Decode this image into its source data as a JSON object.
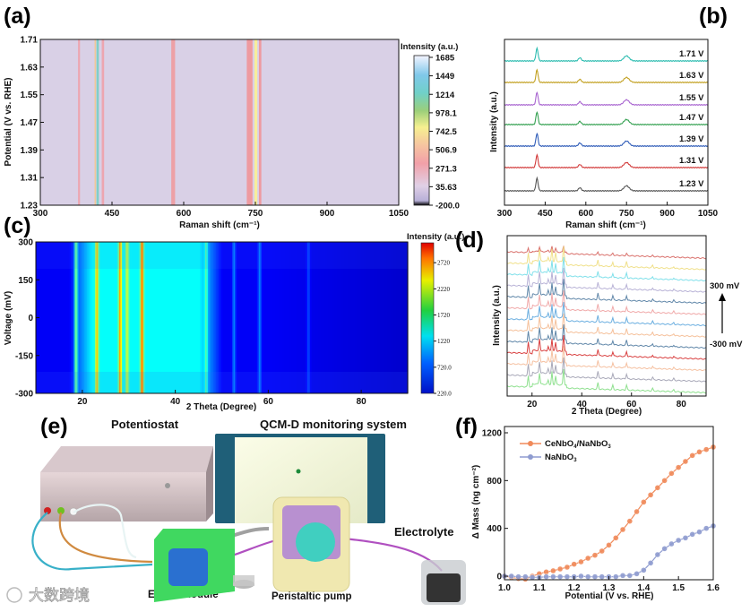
{
  "panel_labels": {
    "a": "(a)",
    "b": "(b)",
    "c": "(c)",
    "d": "(d)",
    "e": "(e)",
    "f": "(f)"
  },
  "chart_data": [
    {
      "id": "a",
      "type": "heatmap",
      "xlabel": "Raman shift (cm⁻¹)",
      "ylabel": "Potential (V vs. RHE)",
      "xlim": [
        300,
        1050
      ],
      "ylim": [
        1.23,
        1.71
      ],
      "xticks": [
        "300",
        "450",
        "600",
        "750",
        "900",
        "1050"
      ],
      "yticks": [
        "1.71",
        "1.63",
        "1.55",
        "1.47",
        "1.39",
        "1.31",
        "1.23"
      ],
      "colorbar_title": "Intensity (a.u.)",
      "colorbar_ticks": [
        "1685",
        "1449",
        "1214",
        "978.1",
        "742.5",
        "506.9",
        "271.3",
        "35.63",
        "-200.0"
      ],
      "background_color": "#d9d0e6",
      "bands": [
        {
          "center": 381,
          "width": 4,
          "color": "#eda5b0"
        },
        {
          "center": 415,
          "width": 3,
          "color": "#f0c89a"
        },
        {
          "center": 420,
          "width": 5,
          "color": "#7fcfc9"
        },
        {
          "center": 431,
          "width": 5,
          "color": "#eda5b0"
        },
        {
          "center": 578,
          "width": 8,
          "color": "#eda0a6"
        },
        {
          "center": 738,
          "width": 12,
          "color": "#ee9aa0"
        },
        {
          "center": 751,
          "width": 6,
          "color": "#f8ee9c"
        },
        {
          "center": 760,
          "width": 5,
          "color": "#ee9aa0"
        }
      ]
    },
    {
      "id": "b",
      "type": "line",
      "xlabel": "Raman shift (cm⁻¹)",
      "ylabel": "Intensity (a.u.)",
      "xlim": [
        300,
        1050
      ],
      "xticks": [
        "300",
        "450",
        "600",
        "750",
        "900",
        "1050"
      ],
      "peaks": [
        {
          "x": 420,
          "h": 1.0,
          "w": 4
        },
        {
          "x": 578,
          "h": 0.25,
          "w": 5
        },
        {
          "x": 750,
          "h": 0.4,
          "w": 10
        }
      ],
      "series": [
        {
          "name": "1.71 V",
          "color": "#2cbcb0"
        },
        {
          "name": "1.63 V",
          "color": "#c2a020"
        },
        {
          "name": "1.55 V",
          "color": "#a864d0"
        },
        {
          "name": "1.47 V",
          "color": "#33a050"
        },
        {
          "name": "1.39 V",
          "color": "#2f5cb8"
        },
        {
          "name": "1.31 V",
          "color": "#d23a3a"
        },
        {
          "name": "1.23 V",
          "color": "#555555"
        }
      ]
    },
    {
      "id": "c",
      "type": "heatmap",
      "xlabel": "2 Theta (Degree)",
      "ylabel": "Voltage (mV)",
      "xlim": [
        10,
        90
      ],
      "ylim": [
        -300,
        300
      ],
      "xticks": [
        "20",
        "40",
        "60",
        "80"
      ],
      "yticks": [
        "300",
        "150",
        "0",
        "-150",
        "-300"
      ],
      "colorbar_title": "Intensity (a.u.)",
      "colorbar_ticks": [
        "2720",
        "2220",
        "1720",
        "1220",
        "720.0",
        "220.0"
      ],
      "zlim": [
        220,
        3100
      ],
      "baseline": 560,
      "hump": {
        "from": 20,
        "to": 47,
        "height": 750
      },
      "peaks": [
        {
          "x": 18.5,
          "h": 900
        },
        {
          "x": 23,
          "h": 850
        },
        {
          "x": 28,
          "h": 1000
        },
        {
          "x": 29.5,
          "h": 600
        },
        {
          "x": 32.7,
          "h": 1150
        },
        {
          "x": 46.5,
          "h": 450
        },
        {
          "x": 52.5,
          "h": 380
        },
        {
          "x": 58,
          "h": 380
        },
        {
          "x": 68.5,
          "h": 250
        }
      ]
    },
    {
      "id": "d",
      "type": "line",
      "xlabel": "2 Theta (Degree)",
      "ylabel": "Intensity (a.u.)",
      "xlim": [
        10,
        90
      ],
      "xticks": [
        "20",
        "40",
        "60",
        "80"
      ],
      "annotation_top": "300 mV",
      "annotation_bottom": "-300 mV",
      "peaks": [
        {
          "x": 18.5,
          "h": 0.9
        },
        {
          "x": 23,
          "h": 0.9
        },
        {
          "x": 26.5,
          "h": 0.35
        },
        {
          "x": 28,
          "h": 1.0
        },
        {
          "x": 29.5,
          "h": 0.7
        },
        {
          "x": 32.7,
          "h": 1.3
        },
        {
          "x": 46.5,
          "h": 0.5
        },
        {
          "x": 52.5,
          "h": 0.35
        },
        {
          "x": 58,
          "h": 0.4
        },
        {
          "x": 68.5,
          "h": 0.2
        },
        {
          "x": 77,
          "h": 0.15
        }
      ],
      "series_colors": [
        "#d9706b",
        "#f0e08a",
        "#80e0ea",
        "#b8b2d6",
        "#5f86a8",
        "#f0a8a8",
        "#6aaee0",
        "#f5c09a",
        "#5f86a8",
        "#d94040",
        "#f5c0a0",
        "#a8a8b8",
        "#8ee08e"
      ]
    },
    {
      "id": "f",
      "type": "scatter-line",
      "xlabel": "Potential (V vs. RHE)",
      "ylabel": "Δ Mass (ng cm⁻²)",
      "xlim": [
        1.0,
        1.6
      ],
      "ylim": [
        -60,
        1230
      ],
      "xticks": [
        "1.0",
        "1.1",
        "1.2",
        "1.3",
        "1.4",
        "1.5",
        "1.6"
      ],
      "yticks": [
        "1200",
        "800",
        "400",
        "0"
      ],
      "legend_position": "top-left",
      "x": [
        1.0,
        1.02,
        1.04,
        1.06,
        1.08,
        1.1,
        1.12,
        1.14,
        1.16,
        1.18,
        1.2,
        1.22,
        1.24,
        1.26,
        1.28,
        1.3,
        1.32,
        1.34,
        1.36,
        1.38,
        1.4,
        1.42,
        1.44,
        1.46,
        1.48,
        1.5,
        1.52,
        1.54,
        1.56,
        1.58,
        1.6
      ],
      "series": [
        {
          "name": "CeNbO",
          "sub1": "4",
          "mid": "/NaNbO",
          "sub2": "3",
          "color": "#f08a5a",
          "values": [
            0,
            -10,
            -20,
            -25,
            0,
            20,
            35,
            45,
            60,
            75,
            100,
            120,
            150,
            175,
            210,
            260,
            320,
            390,
            460,
            540,
            620,
            680,
            740,
            800,
            860,
            910,
            960,
            1010,
            1040,
            1060,
            1080
          ]
        },
        {
          "name": "NaNbO",
          "sub1": "3",
          "color": "#8f9cd0",
          "values": [
            0,
            0,
            -5,
            -5,
            -10,
            -10,
            -5,
            -5,
            -5,
            -5,
            -5,
            0,
            -5,
            -5,
            -5,
            -5,
            -5,
            5,
            5,
            20,
            50,
            110,
            180,
            230,
            270,
            300,
            320,
            350,
            370,
            400,
            420
          ]
        }
      ]
    }
  ],
  "schematic": {
    "potentiostat": "Potentiostat",
    "qcm": "QCM-D monitoring system",
    "electrolyte": "Electrolyte",
    "eqcm": "EQCM module",
    "pump": "Peristaltic pump"
  },
  "watermark": "大数跨境"
}
